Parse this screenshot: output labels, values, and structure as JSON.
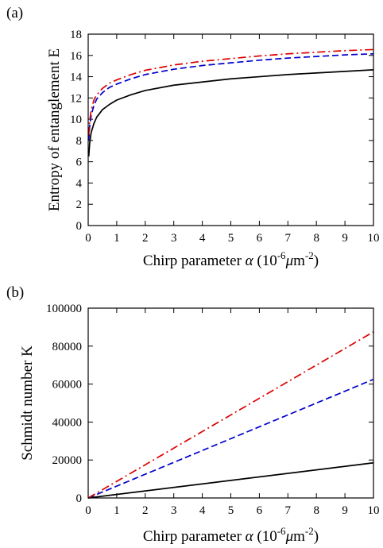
{
  "chart_data": [
    {
      "panel_label": "(a)",
      "type": "line",
      "xlabel": "Chirp parameter α (10⁻⁶μm⁻²)",
      "xlabel_parts": {
        "main": "Chirp parameter ",
        "alpha": "α",
        "unit_open": " (10",
        "sup1": "-6",
        "mu": "μ",
        "unit_m": "m",
        "sup2": "-2",
        "close": ")"
      },
      "ylabel": "Entropy of entanglement E",
      "xlim": [
        0,
        10
      ],
      "ylim": [
        0,
        18
      ],
      "xticks": [
        "0",
        "1",
        "2",
        "3",
        "4",
        "5",
        "6",
        "7",
        "8",
        "9",
        "10"
      ],
      "yticks": [
        "0",
        "2",
        "4",
        "6",
        "8",
        "10",
        "12",
        "14",
        "16",
        "18"
      ],
      "series": [
        {
          "color": "#000000",
          "dash": "solid",
          "x": [
            0.02,
            0.05,
            0.1,
            0.2,
            0.3,
            0.5,
            0.75,
            1,
            1.5,
            2,
            3,
            4,
            5,
            6,
            7,
            8,
            9,
            10
          ],
          "y": [
            6.5,
            7.7,
            8.7,
            9.6,
            10.2,
            10.9,
            11.4,
            11.8,
            12.3,
            12.7,
            13.2,
            13.5,
            13.8,
            14.0,
            14.2,
            14.35,
            14.5,
            14.65
          ]
        },
        {
          "color": "#0000cc",
          "dash": "dashed",
          "x": [
            0.02,
            0.05,
            0.1,
            0.2,
            0.3,
            0.5,
            0.75,
            1,
            1.5,
            2,
            3,
            4,
            5,
            6,
            7,
            8,
            9,
            10
          ],
          "y": [
            8.0,
            9.3,
            10.3,
            11.3,
            11.9,
            12.5,
            13.0,
            13.3,
            13.8,
            14.2,
            14.7,
            15.05,
            15.3,
            15.55,
            15.75,
            15.9,
            16.05,
            16.15
          ]
        },
        {
          "color": "#dd0000",
          "dash": "dashdot",
          "x": [
            0.02,
            0.05,
            0.1,
            0.2,
            0.3,
            0.5,
            0.75,
            1,
            1.5,
            2,
            3,
            4,
            5,
            6,
            7,
            8,
            9,
            10
          ],
          "y": [
            8.5,
            9.8,
            10.8,
            11.8,
            12.3,
            12.9,
            13.4,
            13.7,
            14.2,
            14.6,
            15.1,
            15.45,
            15.7,
            15.95,
            16.15,
            16.3,
            16.45,
            16.55
          ]
        }
      ]
    },
    {
      "panel_label": "(b)",
      "type": "line",
      "xlabel": "Chirp parameter α (10⁻⁶μm⁻²)",
      "xlabel_parts": {
        "main": "Chirp parameter ",
        "alpha": "α",
        "unit_open": " (10",
        "sup1": "-6",
        "mu": "μ",
        "unit_m": "m",
        "sup2": "-2",
        "close": ")"
      },
      "ylabel": "Schmidt number K",
      "xlim": [
        0,
        10
      ],
      "ylim": [
        0,
        100000
      ],
      "xticks": [
        "0",
        "1",
        "2",
        "3",
        "4",
        "5",
        "6",
        "7",
        "8",
        "9",
        "10"
      ],
      "yticks": [
        "0",
        "20000",
        "40000",
        "60000",
        "80000",
        "100000"
      ],
      "series": [
        {
          "color": "#000000",
          "dash": "solid",
          "x": [
            0,
            10
          ],
          "y": [
            0,
            18500
          ]
        },
        {
          "color": "#0000cc",
          "dash": "dashed",
          "x": [
            0,
            10
          ],
          "y": [
            0,
            62500
          ]
        },
        {
          "color": "#dd0000",
          "dash": "dashdot",
          "x": [
            0,
            10
          ],
          "y": [
            0,
            87500
          ]
        }
      ]
    }
  ]
}
